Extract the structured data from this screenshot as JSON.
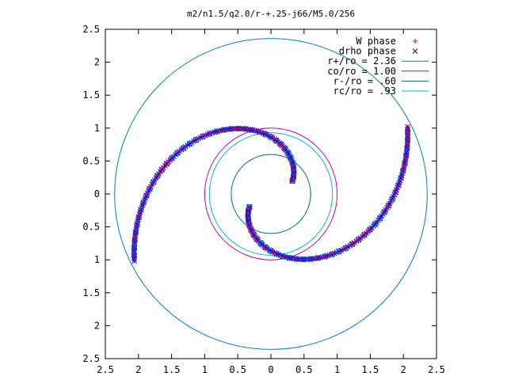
{
  "chart_data": {
    "type": "scatter",
    "title": "m2/n1.5/q2.0/r-+.25-j66/M5.0/256",
    "xlim": [
      -2.5,
      2.5
    ],
    "ylim": [
      -2.5,
      2.5
    ],
    "x_tick_values": [
      -2.5,
      -2,
      -1.5,
      -1,
      -0.5,
      0,
      0.5,
      1,
      1.5,
      2,
      2.5
    ],
    "y_tick_values": [
      2.5,
      2,
      1.5,
      1,
      0.5,
      0,
      -0.5,
      -1,
      -1.5,
      -2,
      -2.5
    ],
    "x_tick_labels": [
      "2.5",
      "2",
      "1.5",
      "1",
      "0.5",
      "0",
      "0.5",
      "1",
      "1.5",
      "2",
      "2.5"
    ],
    "y_tick_labels": [
      "2.5",
      "2",
      "1.5",
      "1",
      "0.5",
      "0",
      "0.5",
      "1",
      "1.5",
      "2",
      "2.5"
    ],
    "legend_position": "top-right",
    "series": [
      {
        "name": "W phase",
        "kind": "points",
        "marker": "plus",
        "color": "#ff0000",
        "mode": "spiral_arms",
        "arms": 2,
        "points_per_arm": 120
      },
      {
        "name": "drho phase",
        "kind": "points",
        "marker": "cross",
        "color": "#0000ff",
        "mode": "spiral_arms",
        "arms": 2,
        "points_per_arm": 120
      },
      {
        "name": "r+/ro = 2.36",
        "kind": "circle",
        "radius": 2.36,
        "color": "#0080c0"
      },
      {
        "name": "co/ro = 1.00",
        "kind": "circle",
        "radius": 1.0,
        "color": "#c000c0"
      },
      {
        "name": "r-/ro = .60",
        "kind": "circle",
        "radius": 0.6,
        "color": "#0060b0"
      },
      {
        "name": "rc/ro = .93",
        "kind": "circle",
        "radius": 0.93,
        "color": "#00c0c0"
      }
    ],
    "square_points_color": "#0080c0"
  }
}
